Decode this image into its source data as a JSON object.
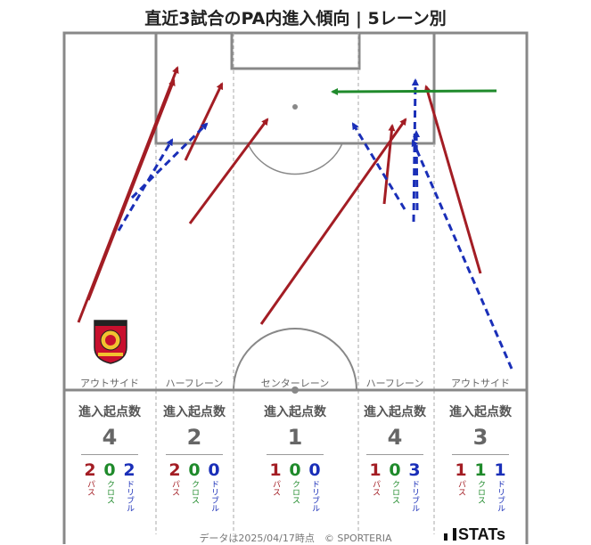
{
  "title": "直近3試合のPA内進入傾向 | 5レーン別",
  "colors": {
    "pass": "#a31d24",
    "cross": "#1f8a2b",
    "dribble": "#1a2fb8",
    "pitch_line": "#888888",
    "lane_line": "#aaaaaa"
  },
  "block_title": "進入起点数",
  "stat_labels": {
    "pass": "パス",
    "cross": "クロス",
    "dribble": "ドリブル"
  },
  "lanes": [
    {
      "label": "アウトサイド",
      "total": "4",
      "pass": "2",
      "cross": "0",
      "dribble": "2"
    },
    {
      "label": "ハーフレーン",
      "total": "2",
      "pass": "2",
      "cross": "0",
      "dribble": "0"
    },
    {
      "label": "センターレーン",
      "total": "1",
      "pass": "1",
      "cross": "0",
      "dribble": "0"
    },
    {
      "label": "ハーフレーン",
      "total": "4",
      "pass": "1",
      "cross": "0",
      "dribble": "3"
    },
    {
      "label": "アウトサイド",
      "total": "3",
      "pass": "1",
      "cross": "1",
      "dribble": "1"
    }
  ],
  "footer": "データは2025/04/17時点　© SPORTERIA",
  "logo_text": "STATs",
  "crest_icon": "urawa-reds-crest-icon"
}
